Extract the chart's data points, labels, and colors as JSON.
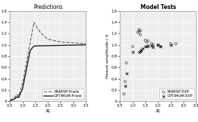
{
  "title_left": "Predictions",
  "title_right": "Model Tests",
  "xlabel": "λL",
  "ylabel_right": "Heave amplitude / A",
  "xlim": [
    0.5,
    3.5
  ],
  "ylim": [
    0,
    1.6
  ],
  "xticks": [
    0.5,
    1.0,
    1.5,
    2.0,
    2.5,
    3.0,
    3.5
  ],
  "yticks": [
    0,
    0.2,
    0.4,
    0.6,
    0.8,
    1.0,
    1.2,
    1.4,
    1.6
  ],
  "legend_left": [
    "PARENT-Frank",
    "OPTIMUM-Frank"
  ],
  "legend_right": [
    "PARENT-EXP",
    "OPTIMUM-EXP"
  ],
  "parent_exp_x": [
    0.65,
    0.7,
    0.75,
    1.0,
    1.2,
    1.25,
    1.25,
    1.3,
    1.3,
    1.5,
    1.55,
    1.6,
    1.75,
    1.8,
    2.0,
    2.1,
    2.5,
    2.7
  ],
  "parent_exp_y": [
    0.13,
    0.35,
    0.68,
    0.97,
    1.22,
    1.24,
    1.27,
    1.18,
    1.25,
    1.08,
    1.05,
    1.07,
    1.02,
    1.0,
    1.0,
    0.97,
    1.02,
    1.02
  ],
  "optimum_exp_x": [
    0.7,
    0.75,
    1.0,
    1.25,
    1.3,
    1.35,
    1.4,
    1.5,
    1.55,
    1.6,
    1.75,
    1.8,
    2.0,
    2.1,
    2.5
  ],
  "optimum_exp_y": [
    0.27,
    0.49,
    0.87,
    0.87,
    0.88,
    0.91,
    0.93,
    0.97,
    0.97,
    0.98,
    0.98,
    0.96,
    1.0,
    0.97,
    1.0
  ],
  "background_color": "#eeeeee",
  "grid_color": "#ffffff",
  "line_color_parent": "#666666",
  "line_color_optimum": "#111111",
  "title_fontsize": 5.5,
  "tick_fontsize": 4.0,
  "xlabel_fontsize": 5.0,
  "ylabel_fontsize": 4.5,
  "legend_fontsize": 3.8
}
